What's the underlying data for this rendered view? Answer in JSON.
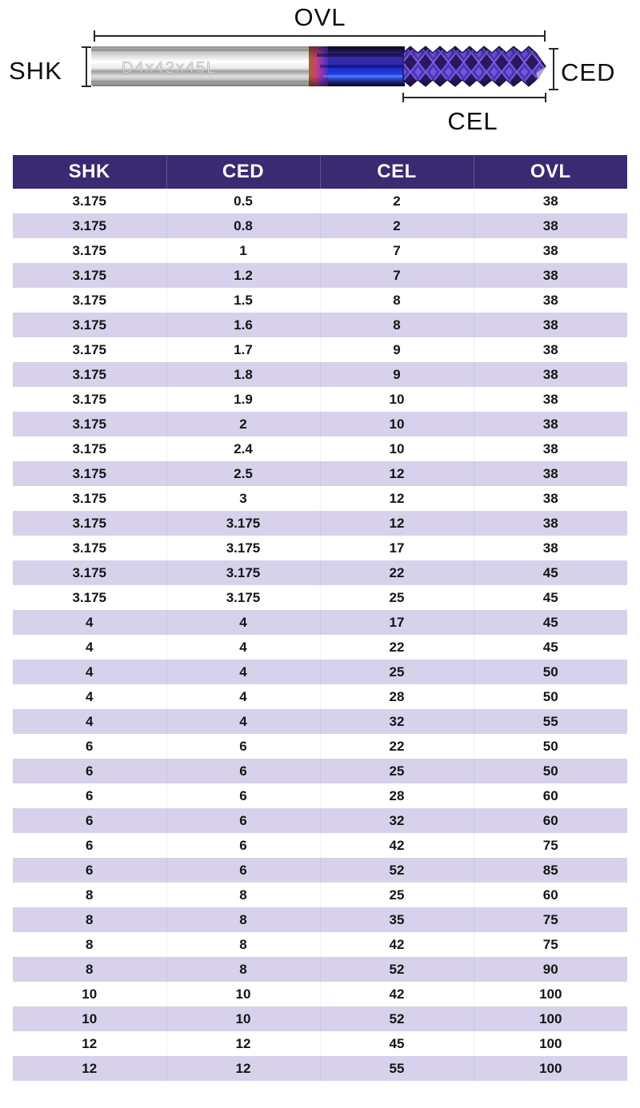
{
  "colors": {
    "header_bg": "#392a72",
    "stripe_bg": "#d7d1eb",
    "row_bg": "#ffffff",
    "header_text": "#ffffff",
    "cell_text": "#151515",
    "dim_line": "#26262e",
    "label_text": "#0d0d14",
    "shank_silver": "#d9d9d9",
    "transition_orange": "#b35f22",
    "coating_blue": "#3346e8",
    "coating_purple": "#5b3fd6"
  },
  "diagram": {
    "ovl_label": "OVL",
    "shk_label": "SHK",
    "ced_label": "CED",
    "cel_label": "CEL",
    "engraving": "D4x42x45L"
  },
  "table": {
    "columns": [
      "SHK",
      "CED",
      "CEL",
      "OVL"
    ],
    "rows": [
      [
        "3.175",
        "0.5",
        "2",
        "38"
      ],
      [
        "3.175",
        "0.8",
        "2",
        "38"
      ],
      [
        "3.175",
        "1",
        "7",
        "38"
      ],
      [
        "3.175",
        "1.2",
        "7",
        "38"
      ],
      [
        "3.175",
        "1.5",
        "8",
        "38"
      ],
      [
        "3.175",
        "1.6",
        "8",
        "38"
      ],
      [
        "3.175",
        "1.7",
        "9",
        "38"
      ],
      [
        "3.175",
        "1.8",
        "9",
        "38"
      ],
      [
        "3.175",
        "1.9",
        "10",
        "38"
      ],
      [
        "3.175",
        "2",
        "10",
        "38"
      ],
      [
        "3.175",
        "2.4",
        "10",
        "38"
      ],
      [
        "3.175",
        "2.5",
        "12",
        "38"
      ],
      [
        "3.175",
        "3",
        "12",
        "38"
      ],
      [
        "3.175",
        "3.175",
        "12",
        "38"
      ],
      [
        "3.175",
        "3.175",
        "17",
        "38"
      ],
      [
        "3.175",
        "3.175",
        "22",
        "45"
      ],
      [
        "3.175",
        "3.175",
        "25",
        "45"
      ],
      [
        "4",
        "4",
        "17",
        "45"
      ],
      [
        "4",
        "4",
        "22",
        "45"
      ],
      [
        "4",
        "4",
        "25",
        "50"
      ],
      [
        "4",
        "4",
        "28",
        "50"
      ],
      [
        "4",
        "4",
        "32",
        "55"
      ],
      [
        "6",
        "6",
        "22",
        "50"
      ],
      [
        "6",
        "6",
        "25",
        "50"
      ],
      [
        "6",
        "6",
        "28",
        "60"
      ],
      [
        "6",
        "6",
        "32",
        "60"
      ],
      [
        "6",
        "6",
        "42",
        "75"
      ],
      [
        "6",
        "6",
        "52",
        "85"
      ],
      [
        "8",
        "8",
        "25",
        "60"
      ],
      [
        "8",
        "8",
        "35",
        "75"
      ],
      [
        "8",
        "8",
        "42",
        "75"
      ],
      [
        "8",
        "8",
        "52",
        "90"
      ],
      [
        "10",
        "10",
        "42",
        "100"
      ],
      [
        "10",
        "10",
        "52",
        "100"
      ],
      [
        "12",
        "12",
        "45",
        "100"
      ],
      [
        "12",
        "12",
        "55",
        "100"
      ]
    ]
  }
}
